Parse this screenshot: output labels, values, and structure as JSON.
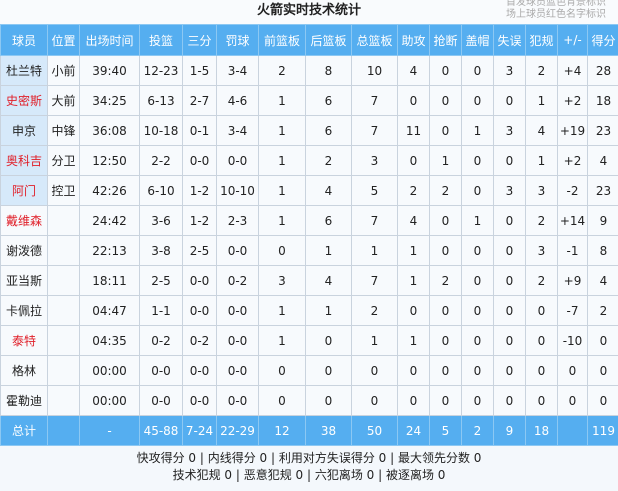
{
  "title": "火箭实时技术统计",
  "legend": {
    "starter_note": "首发球员蓝色背景标识",
    "oncourt_note": "场上球员红色名字标识",
    "starter_bg": "#d6e9fa",
    "oncourt_color": "#e0202a"
  },
  "header_color": "#55aef0",
  "columns": [
    "球员",
    "位置",
    "出场时间",
    "投篮",
    "三分",
    "罚球",
    "前篮板",
    "后篮板",
    "总篮板",
    "助攻",
    "抢断",
    "盖帽",
    "失误",
    "犯规",
    "+/-",
    "得分"
  ],
  "players": [
    {
      "starter": true,
      "oncourt": false,
      "cells": [
        "杜兰特",
        "小前",
        "39:40",
        "12-23",
        "1-5",
        "3-4",
        "2",
        "8",
        "10",
        "4",
        "0",
        "0",
        "3",
        "2",
        "+4",
        "28"
      ]
    },
    {
      "starter": true,
      "oncourt": true,
      "cells": [
        "史密斯",
        "大前",
        "34:25",
        "6-13",
        "2-7",
        "4-6",
        "1",
        "6",
        "7",
        "0",
        "0",
        "0",
        "0",
        "1",
        "+2",
        "18"
      ]
    },
    {
      "starter": true,
      "oncourt": false,
      "cells": [
        "申京",
        "中锋",
        "36:08",
        "10-18",
        "0-1",
        "3-4",
        "1",
        "6",
        "7",
        "11",
        "0",
        "1",
        "3",
        "4",
        "+19",
        "23"
      ]
    },
    {
      "starter": true,
      "oncourt": true,
      "cells": [
        "奥科吉",
        "分卫",
        "12:50",
        "2-2",
        "0-0",
        "0-0",
        "1",
        "2",
        "3",
        "0",
        "1",
        "0",
        "0",
        "1",
        "+2",
        "4"
      ]
    },
    {
      "starter": true,
      "oncourt": true,
      "cells": [
        "阿门",
        "控卫",
        "42:26",
        "6-10",
        "1-2",
        "10-10",
        "1",
        "4",
        "5",
        "2",
        "2",
        "0",
        "3",
        "3",
        "-2",
        "23"
      ]
    },
    {
      "starter": false,
      "oncourt": true,
      "cells": [
        "戴维森",
        "",
        "24:42",
        "3-6",
        "1-2",
        "2-3",
        "1",
        "6",
        "7",
        "4",
        "0",
        "1",
        "0",
        "2",
        "+14",
        "9"
      ]
    },
    {
      "starter": false,
      "oncourt": false,
      "cells": [
        "谢泼德",
        "",
        "22:13",
        "3-8",
        "2-5",
        "0-0",
        "0",
        "1",
        "1",
        "1",
        "0",
        "0",
        "0",
        "3",
        "-1",
        "8"
      ]
    },
    {
      "starter": false,
      "oncourt": false,
      "cells": [
        "亚当斯",
        "",
        "18:11",
        "2-5",
        "0-0",
        "0-2",
        "3",
        "4",
        "7",
        "1",
        "2",
        "0",
        "0",
        "2",
        "+9",
        "4"
      ]
    },
    {
      "starter": false,
      "oncourt": false,
      "cells": [
        "卡佩拉",
        "",
        "04:47",
        "1-1",
        "0-0",
        "0-0",
        "1",
        "1",
        "2",
        "0",
        "0",
        "0",
        "0",
        "0",
        "-7",
        "2"
      ]
    },
    {
      "starter": false,
      "oncourt": true,
      "cells": [
        "泰特",
        "",
        "04:35",
        "0-2",
        "0-2",
        "0-0",
        "1",
        "0",
        "1",
        "1",
        "0",
        "0",
        "0",
        "0",
        "-10",
        "0"
      ]
    },
    {
      "starter": false,
      "oncourt": false,
      "cells": [
        "格林",
        "",
        "00:00",
        "0-0",
        "0-0",
        "0-0",
        "0",
        "0",
        "0",
        "0",
        "0",
        "0",
        "0",
        "0",
        "0",
        "0"
      ]
    },
    {
      "starter": false,
      "oncourt": false,
      "cells": [
        "霍勒迪",
        "",
        "00:00",
        "0-0",
        "0-0",
        "0-0",
        "0",
        "0",
        "0",
        "0",
        "0",
        "0",
        "0",
        "0",
        "0",
        "0"
      ]
    }
  ],
  "totals": [
    "总计",
    "",
    "-",
    "45-88",
    "7-24",
    "22-29",
    "12",
    "38",
    "50",
    "24",
    "5",
    "2",
    "9",
    "18",
    "",
    "119"
  ],
  "footer": {
    "line1": "快攻得分 0 | 内线得分 0 | 利用对方失误得分 0 | 最大领先分数 0",
    "line2": "技术犯规 0 | 恶意犯规 0 | 六犯离场 0 | 被逐离场 0"
  }
}
